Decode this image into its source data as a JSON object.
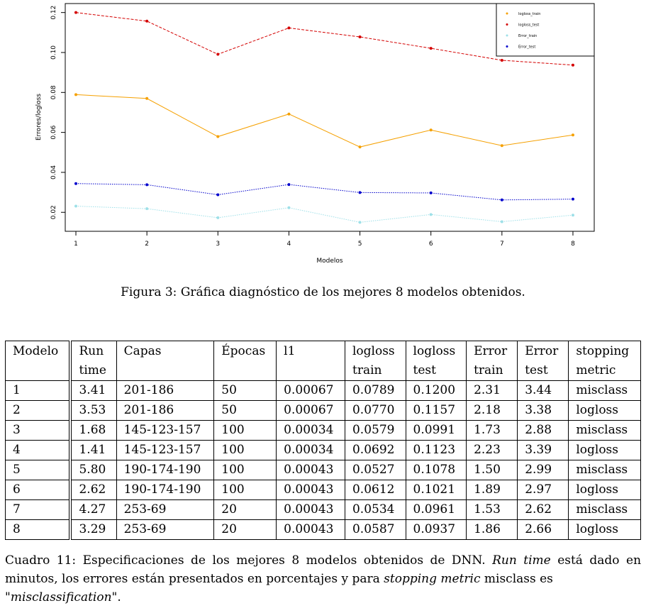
{
  "chart_data": {
    "type": "line",
    "xlabel": "Modelos",
    "ylabel": "Errores/logloss",
    "x": [
      1,
      2,
      3,
      4,
      5,
      6,
      7,
      8
    ],
    "xlim": [
      0.85,
      8.3
    ],
    "ylim": [
      0.0105,
      0.1245
    ],
    "yticks": [
      "0.02",
      "0.04",
      "0.06",
      "0.08",
      "0.10",
      "0.12"
    ],
    "ytick_values": [
      0.02,
      0.04,
      0.06,
      0.08,
      0.1,
      0.12
    ],
    "xticks": [
      "1",
      "2",
      "3",
      "4",
      "5",
      "6",
      "7",
      "8"
    ],
    "legend_position": "top-right",
    "series": [
      {
        "name": "logloss_train",
        "color": "#f5a000",
        "dash": "solid",
        "values": [
          0.0789,
          0.077,
          0.0579,
          0.0692,
          0.0527,
          0.0612,
          0.0534,
          0.0587
        ]
      },
      {
        "name": "logloss_test",
        "color": "#d40000",
        "dash": "dashed",
        "values": [
          0.12,
          0.1157,
          0.0991,
          0.1123,
          0.1078,
          0.1021,
          0.0961,
          0.0937
        ]
      },
      {
        "name": "Error_train",
        "color": "#9ee0e8",
        "dash": "dotted",
        "values": [
          0.0231,
          0.0218,
          0.0173,
          0.0223,
          0.015,
          0.0189,
          0.0153,
          0.0186
        ]
      },
      {
        "name": "Error_test",
        "color": "#0000cc",
        "dash": "dotted",
        "values": [
          0.0344,
          0.0338,
          0.0288,
          0.0339,
          0.0299,
          0.0297,
          0.0262,
          0.0266
        ]
      }
    ]
  },
  "figure_caption": "Figura 3: Gráfica diagnóstico de los mejores 8 modelos obtenidos.",
  "table": {
    "headers": [
      [
        "Modelo",
        ""
      ],
      [
        "Run",
        "time"
      ],
      [
        "Capas",
        ""
      ],
      [
        "Épocas",
        ""
      ],
      [
        "l1",
        ""
      ],
      [
        "logloss",
        "train"
      ],
      [
        "logloss",
        "test"
      ],
      [
        "Error",
        "train"
      ],
      [
        "Error",
        "test"
      ],
      [
        "stopping",
        "metric"
      ]
    ],
    "rows": [
      [
        "1",
        "3.41",
        "201-186",
        "50",
        "0.00067",
        "0.0789",
        "0.1200",
        "2.31",
        "3.44",
        "misclass"
      ],
      [
        "2",
        "3.53",
        "201-186",
        "50",
        "0.00067",
        "0.0770",
        "0.1157",
        "2.18",
        "3.38",
        "logloss"
      ],
      [
        "3",
        "1.68",
        "145-123-157",
        "100",
        "0.00034",
        "0.0579",
        "0.0991",
        "1.73",
        "2.88",
        "misclass"
      ],
      [
        "4",
        "1.41",
        "145-123-157",
        "100",
        "0.00034",
        "0.0692",
        "0.1123",
        "2.23",
        "3.39",
        "logloss"
      ],
      [
        "5",
        "5.80",
        "190-174-190",
        "100",
        "0.00043",
        "0.0527",
        "0.1078",
        "1.50",
        "2.99",
        "misclass"
      ],
      [
        "6",
        "2.62",
        "190-174-190",
        "100",
        "0.00043",
        "0.0612",
        "0.1021",
        "1.89",
        "2.97",
        "logloss"
      ],
      [
        "7",
        "4.27",
        "253-69",
        "20",
        "0.00043",
        "0.0534",
        "0.0961",
        "1.53",
        "2.62",
        "misclass"
      ],
      [
        "8",
        "3.29",
        "253-69",
        "20",
        "0.00043",
        "0.0587",
        "0.0937",
        "1.86",
        "2.66",
        "logloss"
      ]
    ]
  },
  "table_caption": {
    "part1": "Cuadro 11: Especificaciones de los mejores 8 modelos obtenidos de DNN.",
    "em1": "Run time",
    "part2": "está dado en minutos, los errores están presentados en porcentajes y para",
    "em2": "stopping metric",
    "part3": "misclass es",
    "em3": "\"misclassification\"",
    "part4": "."
  }
}
